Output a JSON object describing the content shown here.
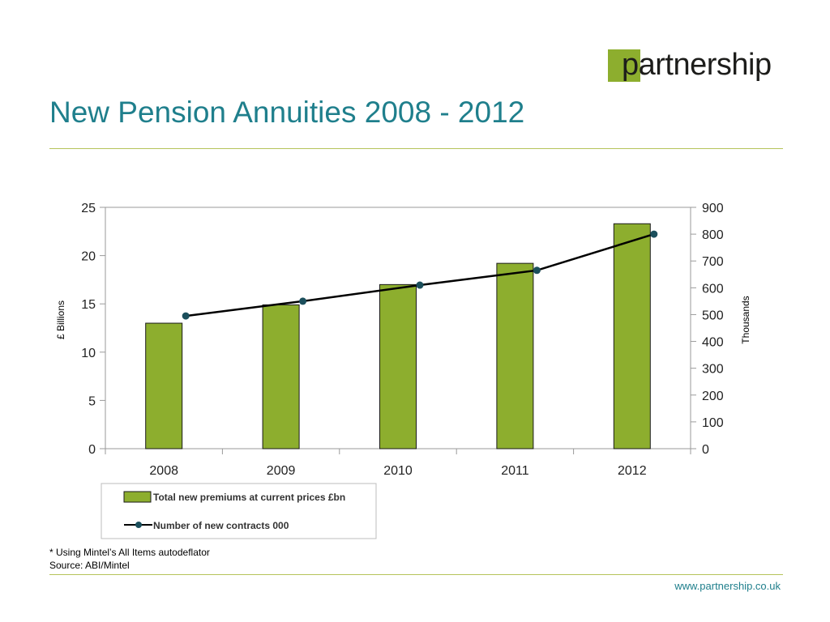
{
  "logo": {
    "text": "partnership"
  },
  "title": "New Pension Annuities 2008 - 2012",
  "chart_data": {
    "type": "bar",
    "categories": [
      "2008",
      "2009",
      "2010",
      "2011",
      "2012"
    ],
    "series": [
      {
        "name": "Total new premiums at current prices £bn",
        "type": "bar",
        "axis": "left",
        "color": "#8dae2e",
        "values": [
          13.0,
          14.9,
          17.0,
          19.2,
          23.3
        ]
      },
      {
        "name": "Number of new contracts 000",
        "type": "line",
        "axis": "right",
        "color": "#000000",
        "marker_color": "#1b4f5c",
        "values": [
          495,
          550,
          610,
          665,
          800
        ]
      }
    ],
    "ylabel": "£ Billions",
    "ylabel_right": "Thousands",
    "ylim": [
      0,
      25
    ],
    "ylim_right": [
      0,
      900
    ],
    "yticks": [
      0,
      5,
      10,
      15,
      20,
      25
    ],
    "yticks_right": [
      0,
      100,
      200,
      300,
      400,
      500,
      600,
      700,
      800,
      900
    ],
    "grid": false,
    "legend_position": "bottom"
  },
  "footnote": {
    "note": "* Using Mintel’s All Items autodeflator",
    "source": "Source: ABI/Mintel"
  },
  "footer": {
    "url": "www.partnership.co.uk"
  },
  "colors": {
    "accent": "#1f7f8c",
    "brand_green": "#8dae2e",
    "rule": "#b5c35a"
  }
}
